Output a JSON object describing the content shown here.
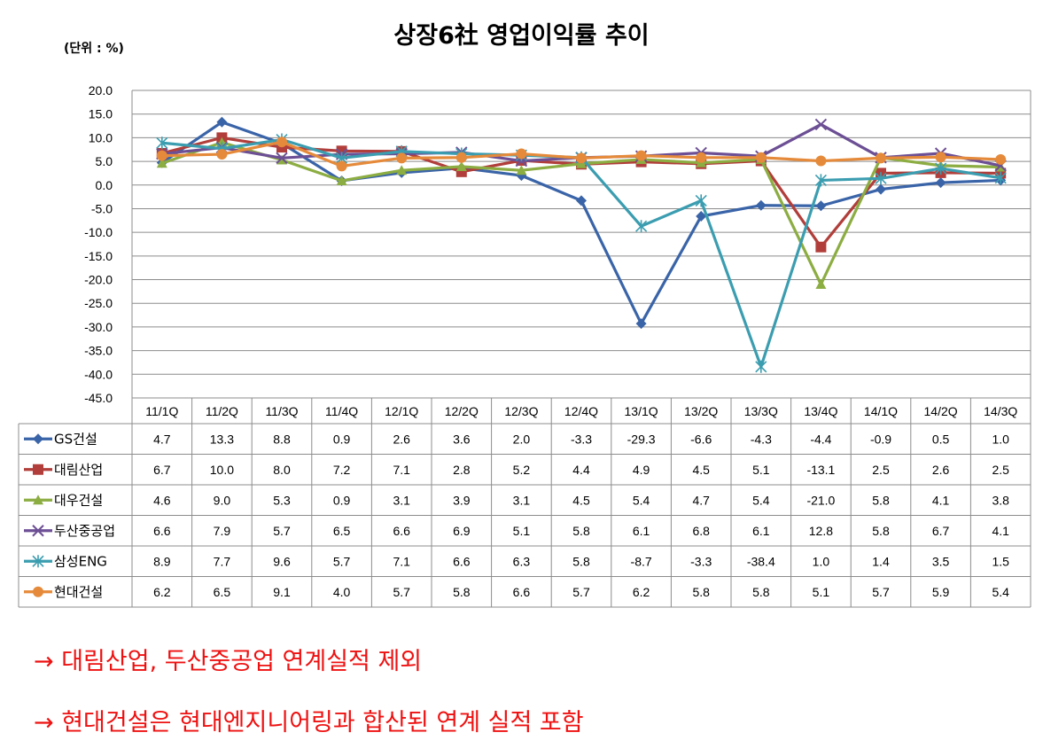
{
  "header": {
    "title": "상장6社 영업이익률 추이",
    "unit": "(단위 : %)"
  },
  "chart_data": {
    "type": "line",
    "title": "상장6社 영업이익률 추이",
    "ylabel": "(단위 : %)",
    "categories": [
      "11/1Q",
      "11/2Q",
      "11/3Q",
      "11/4Q",
      "12/1Q",
      "12/2Q",
      "12/3Q",
      "12/4Q",
      "13/1Q",
      "13/2Q",
      "13/3Q",
      "13/4Q",
      "14/1Q",
      "14/2Q",
      "14/3Q"
    ],
    "ylim": [
      -45,
      20
    ],
    "ytick_step": 5,
    "ytick_labels": [
      "20.0",
      "15.0",
      "10.0",
      "5.0",
      "0.0",
      "-5.0",
      "-10.0",
      "-15.0",
      "-20.0",
      "-25.0",
      "-30.0",
      "-35.0",
      "-40.0",
      "-45.0"
    ],
    "grid": true,
    "legend": "data-table-left",
    "series": [
      {
        "name": "GS건설",
        "color": "#3a64a8",
        "marker": "diamond",
        "values": [
          4.7,
          13.3,
          8.8,
          0.9,
          2.6,
          3.6,
          2.0,
          -3.3,
          -29.3,
          -6.6,
          -4.3,
          -4.4,
          -0.9,
          0.5,
          1.0
        ],
        "labels": [
          "4.7",
          "13.3",
          "8.8",
          "0.9",
          "2.6",
          "3.6",
          "2.0",
          "-3.3",
          "-29.3",
          "-6.6",
          "-4.3",
          "-4.4",
          "-0.9",
          "0.5",
          "1.0"
        ]
      },
      {
        "name": "대림산업",
        "color": "#b13e3a",
        "marker": "square",
        "values": [
          6.7,
          10.0,
          8.0,
          7.2,
          7.1,
          2.8,
          5.2,
          4.4,
          4.9,
          4.5,
          5.1,
          -13.1,
          2.5,
          2.6,
          2.5
        ],
        "labels": [
          "6.7",
          "10.0",
          "8.0",
          "7.2",
          "7.1",
          "2.8",
          "5.2",
          "4.4",
          "4.9",
          "4.5",
          "5.1",
          "-13.1",
          "2.5",
          "2.6",
          "2.5"
        ]
      },
      {
        "name": "대우건설",
        "color": "#8cad42",
        "marker": "triangle",
        "values": [
          4.6,
          9.0,
          5.3,
          0.9,
          3.1,
          3.9,
          3.1,
          4.5,
          5.4,
          4.7,
          5.4,
          -21.0,
          5.8,
          4.1,
          3.8
        ],
        "labels": [
          "4.6",
          "9.0",
          "5.3",
          "0.9",
          "3.1",
          "3.9",
          "3.1",
          "4.5",
          "5.4",
          "4.7",
          "5.4",
          "-21.0",
          "5.8",
          "4.1",
          "3.8"
        ]
      },
      {
        "name": "두산중공업",
        "color": "#6c4f94",
        "marker": "x",
        "values": [
          6.6,
          7.9,
          5.7,
          6.5,
          6.6,
          6.9,
          5.1,
          5.8,
          6.1,
          6.8,
          6.1,
          12.8,
          5.8,
          6.7,
          4.1
        ],
        "labels": [
          "6.6",
          "7.9",
          "5.7",
          "6.5",
          "6.6",
          "6.9",
          "5.1",
          "5.8",
          "6.1",
          "6.8",
          "6.1",
          "12.8",
          "5.8",
          "6.7",
          "4.1"
        ]
      },
      {
        "name": "삼성ENG",
        "color": "#3b9db0",
        "marker": "star",
        "values": [
          8.9,
          7.7,
          9.6,
          5.7,
          7.1,
          6.6,
          6.3,
          5.8,
          -8.7,
          -3.3,
          -38.4,
          1.0,
          1.4,
          3.5,
          1.5
        ],
        "labels": [
          "8.9",
          "7.7",
          "9.6",
          "5.7",
          "7.1",
          "6.6",
          "6.3",
          "5.8",
          "-8.7",
          "-3.3",
          "-38.4",
          "1.0",
          "1.4",
          "3.5",
          "1.5"
        ]
      },
      {
        "name": "현대건설",
        "color": "#e58a3a",
        "marker": "circle",
        "values": [
          6.2,
          6.5,
          9.1,
          4.0,
          5.7,
          5.8,
          6.6,
          5.7,
          6.2,
          5.8,
          5.8,
          5.1,
          5.7,
          5.9,
          5.4
        ],
        "labels": [
          "6.2",
          "6.5",
          "9.1",
          "4.0",
          "5.7",
          "5.8",
          "6.6",
          "5.7",
          "6.2",
          "5.8",
          "5.8",
          "5.1",
          "5.7",
          "5.9",
          "5.4"
        ]
      }
    ]
  },
  "notes": {
    "note1": "→ 대림산업, 두산중공업 연계실적 제외",
    "note2": "→ 현대건설은 현대엔지니어링과 합산된 연계 실적 포함"
  }
}
